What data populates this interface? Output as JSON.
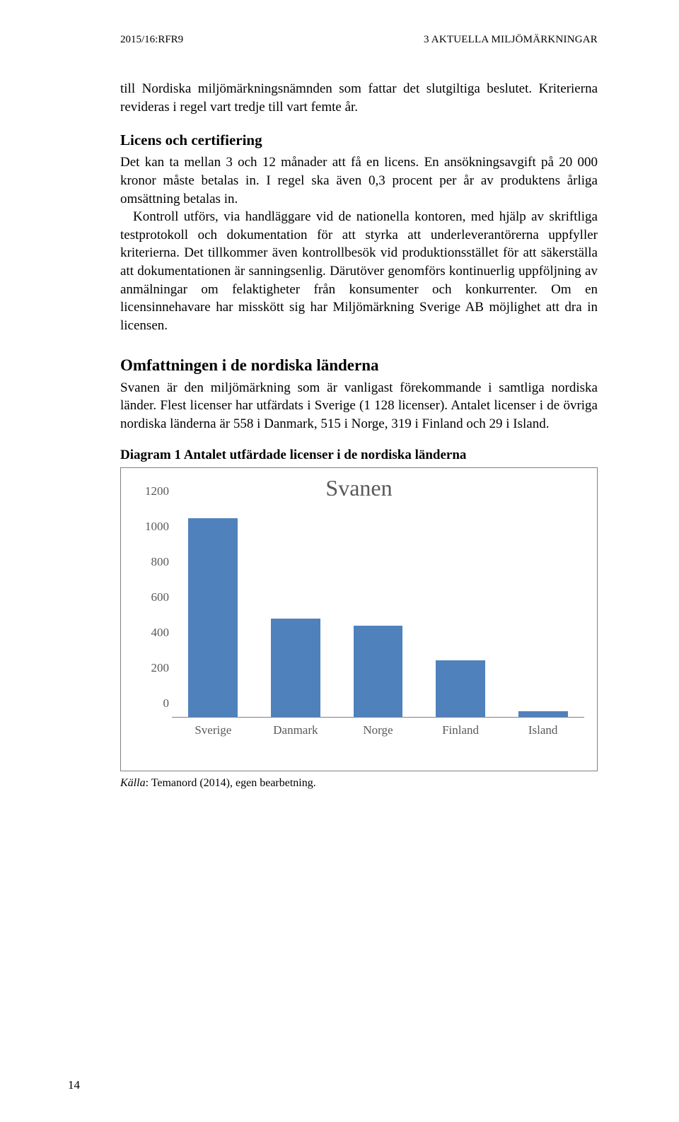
{
  "header": {
    "left": "2015/16:RFR9",
    "right": "3 AKTUELLA MILJÖMÄRKNINGAR"
  },
  "intro_para": "till Nordiska miljömärkningsnämnden som fattar det slutgiltiga beslutet. Kriterierna revideras i regel vart tredje till vart femte år.",
  "section1": {
    "heading": "Licens och certifiering",
    "para1": "Det kan ta mellan 3 och 12 månader att få en licens. En ansökningsavgift på 20 000 kronor måste betalas in. I regel ska även 0,3 procent per år av produktens årliga omsättning betalas in.",
    "para2": "Kontroll utförs, via handläggare vid de nationella kontoren, med hjälp av skriftliga testprotokoll och dokumentation för att styrka att underleverantörerna uppfyller kriterierna. Det tillkommer även kontrollbesök vid produktionsstället för att säkerställa att dokumentationen är sanningsenlig. Därutöver genomförs kontinuerlig uppföljning av anmälningar om felaktigheter från konsumenter och konkurrenter. Om en licensinnehavare har misskött sig har Miljömärkning Sverige AB möjlighet att dra in licensen."
  },
  "section2": {
    "heading": "Omfattningen i de nordiska länderna",
    "para": "Svanen är den miljömärkning som är vanligast förekommande i samtliga nordiska länder. Flest licenser har utfärdats i Sverige (1 128 licenser). Antalet licenser i de övriga nordiska länderna är 558 i Danmark, 515 i Norge, 319 i Finland och 29 i Island."
  },
  "chart": {
    "caption": "Diagram 1 Antalet utfärdade licenser i de nordiska länderna",
    "title": "Svanen",
    "type": "bar",
    "categories": [
      "Sverige",
      "Danmark",
      "Norge",
      "Finland",
      "Island"
    ],
    "values": [
      1128,
      558,
      515,
      319,
      29
    ],
    "bar_color": "#4f81bd",
    "ylim_max": 1200,
    "ytick_step": 200,
    "yticks": [
      "0",
      "200",
      "400",
      "600",
      "800",
      "1000",
      "1200"
    ],
    "axis_text_color": "#595959",
    "title_color": "#595959",
    "title_fontsize": 32,
    "label_fontsize": 17,
    "frame_border_color": "#808080",
    "background_color": "#ffffff"
  },
  "source": {
    "label": "Källa",
    "text": ": Temanord (2014), egen bearbetning."
  },
  "page_number": "14"
}
